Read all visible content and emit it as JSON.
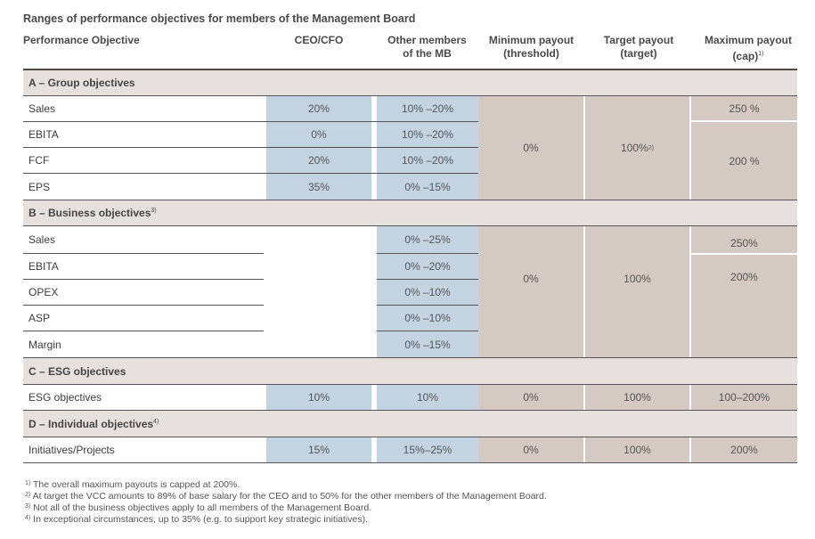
{
  "title": "Ranges of performance objectives for members of the Management Board",
  "headers": {
    "objective": "Performance Objective",
    "ceo_cfo": "CEO/CFO",
    "other_members_1": "Other members",
    "other_members_2": "of the MB",
    "min_payout_1": "Minimum payout",
    "min_payout_2": "(threshold)",
    "target_payout_1": "Target payout",
    "target_payout_2": "(target)",
    "max_payout_1": "Maximum payout",
    "max_payout_2": "(cap)",
    "max_payout_note": "1)"
  },
  "sections": {
    "a": {
      "label": "A – Group objectives",
      "note": ""
    },
    "b": {
      "label": "B – Business objectives",
      "note": "3)"
    },
    "c": {
      "label": "C – ESG objectives",
      "note": ""
    },
    "d": {
      "label": "D – Individual objectives",
      "note": "4)"
    }
  },
  "group_rows": [
    {
      "label": "Sales",
      "ceo": "20%",
      "other": "10% –20%"
    },
    {
      "label": "EBITA",
      "ceo": "0%",
      "other": "10% –20%"
    },
    {
      "label": "FCF",
      "ceo": "20%",
      "other": "10% –20%"
    },
    {
      "label": "EPS",
      "ceo": "35%",
      "other": "0% –15%"
    }
  ],
  "group_min": "0%",
  "group_target": "100%",
  "group_target_note": "2)",
  "group_max_sales": "250 %",
  "group_max_rest": "200 %",
  "business_rows": [
    {
      "label": "Sales",
      "other": "0% –25%"
    },
    {
      "label": "EBITA",
      "other": "0% –20%"
    },
    {
      "label": "OPEX",
      "other": "0% –10%"
    },
    {
      "label": "ASP",
      "other": "0% –10%"
    },
    {
      "label": "Margin",
      "other": "0% –15%"
    }
  ],
  "business_min": "0%",
  "business_target": "100%",
  "business_max_sales": "250%",
  "business_max_rest": "200%",
  "esg_row": {
    "label": "ESG objectives",
    "ceo": "10%",
    "other": "10%",
    "min": "0%",
    "target": "100%",
    "max": "100–200%"
  },
  "individual_row": {
    "label": "Initiatives/Projects",
    "ceo": "15%",
    "other": "15%–25%",
    "min": "0%",
    "target": "100%",
    "max": "200%"
  },
  "footnotes": [
    {
      "mark": "1)",
      "text": "The overall maximum payouts is capped at 200%."
    },
    {
      "mark": "2)",
      "text": "At target the VCC amounts to 89% of base salary for the CEO and to 50% for the other members of the Management Board."
    },
    {
      "mark": "3)",
      "text": "Not all of the business objectives apply to all members of the Management Board."
    },
    {
      "mark": "4)",
      "text": "In exceptional circumstances, up to 35% (e.g. to support key strategic initiatives)."
    }
  ]
}
